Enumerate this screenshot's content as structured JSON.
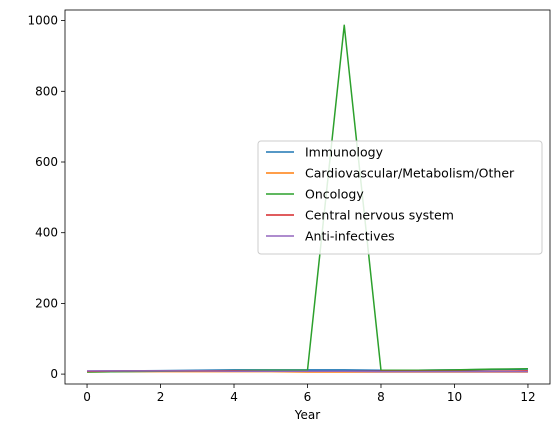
{
  "chart_data": {
    "type": "line",
    "title": "",
    "xlabel": "Year",
    "ylabel": "",
    "x": [
      0,
      1,
      2,
      3,
      4,
      5,
      6,
      7,
      8,
      9,
      10,
      11,
      12
    ],
    "xlim": [
      -0.6,
      12.6
    ],
    "ylim": [
      -28,
      1030
    ],
    "x_ticks": [
      0,
      2,
      4,
      6,
      8,
      10,
      12
    ],
    "y_ticks": [
      0,
      200,
      400,
      600,
      800,
      1000
    ],
    "grid": false,
    "legend_position": "center-right",
    "series": [
      {
        "name": "Immunology",
        "color": "#1f77b4",
        "values": [
          8,
          9,
          10,
          11,
          12,
          12,
          12,
          12,
          11,
          11,
          12,
          13,
          14
        ]
      },
      {
        "name": "Cardiovascular/Metabolism/Other",
        "color": "#ff7f0e",
        "values": [
          6,
          7,
          7,
          7,
          7,
          7,
          6,
          6,
          6,
          6,
          6,
          6,
          6
        ]
      },
      {
        "name": "Oncology",
        "color": "#2ca02c",
        "values": [
          6,
          7,
          8,
          9,
          10,
          11,
          11,
          987,
          11,
          11,
          12,
          14,
          15
        ]
      },
      {
        "name": "Central nervous system",
        "color": "#d62728",
        "values": [
          8,
          9,
          9,
          9,
          9,
          8,
          8,
          8,
          8,
          8,
          8,
          8,
          9
        ]
      },
      {
        "name": "Anti-infectives",
        "color": "#9467bd",
        "values": [
          9,
          9,
          9,
          9,
          8,
          8,
          8,
          8,
          7,
          7,
          7,
          7,
          7
        ]
      }
    ]
  }
}
